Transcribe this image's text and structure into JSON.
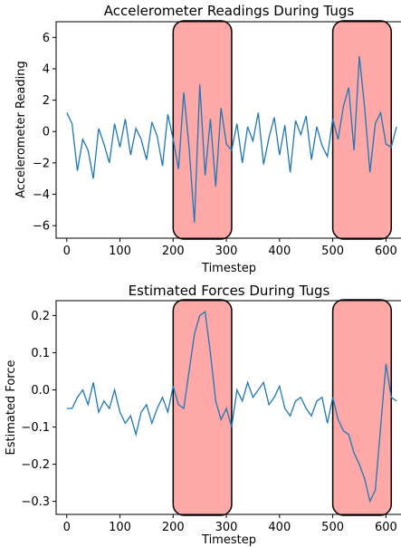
{
  "colors": {
    "line": "#1f77b4",
    "band": "#ff9999",
    "band_edge": "#000000",
    "axis": "#000000"
  },
  "chart_data": [
    {
      "type": "line",
      "title": "Accelerometer Readings During Tugs",
      "xlabel": "Timestep",
      "ylabel": "Accelerometer Reading",
      "xlim": [
        -20,
        630
      ],
      "ylim": [
        -6.8,
        7.0
      ],
      "xticks": [
        0,
        100,
        200,
        300,
        400,
        500,
        600
      ],
      "yticks": [
        -6,
        -4,
        -2,
        0,
        2,
        4,
        6
      ],
      "highlight_ranges": [
        [
          200,
          310
        ],
        [
          500,
          610
        ]
      ],
      "series": [
        {
          "x": [
            0,
            10,
            20,
            30,
            40,
            50,
            60,
            70,
            80,
            90,
            100,
            110,
            120,
            130,
            140,
            150,
            160,
            170,
            180,
            190,
            200,
            210,
            220,
            230,
            240,
            250,
            260,
            270,
            280,
            290,
            300,
            310,
            320,
            330,
            340,
            350,
            360,
            370,
            380,
            390,
            400,
            410,
            420,
            430,
            440,
            450,
            460,
            470,
            480,
            490,
            500,
            510,
            520,
            530,
            540,
            550,
            560,
            570,
            580,
            590,
            600,
            610,
            620
          ],
          "y": [
            1.2,
            0.5,
            -2.5,
            -0.5,
            -1.2,
            -3.0,
            0.2,
            -0.8,
            -2.0,
            0.5,
            -1.0,
            0.8,
            -1.5,
            0.2,
            -0.5,
            -1.8,
            0.6,
            -0.3,
            -2.2,
            1.1,
            -0.5,
            -2.4,
            2.5,
            -1.0,
            -5.8,
            3.0,
            -2.8,
            0.8,
            -3.5,
            1.5,
            -0.8,
            -1.2,
            0.5,
            -2.0,
            0.3,
            -0.6,
            1.2,
            -2.1,
            -0.4,
            0.9,
            -1.5,
            0.4,
            -2.6,
            0.7,
            -0.2,
            1.0,
            -1.8,
            0.3,
            -0.9,
            -1.6,
            0.8,
            -0.5,
            1.6,
            2.8,
            -1.2,
            4.8,
            1.5,
            -2.6,
            0.5,
            1.2,
            -0.8,
            -1.0,
            0.3
          ]
        }
      ]
    },
    {
      "type": "line",
      "title": "Estimated Forces During Tugs",
      "xlabel": "Timestep",
      "ylabel": "Estimated Force",
      "xlim": [
        -20,
        630
      ],
      "ylim": [
        -0.335,
        0.24
      ],
      "xticks": [
        0,
        100,
        200,
        300,
        400,
        500,
        600
      ],
      "yticks": [
        -0.3,
        -0.2,
        -0.1,
        0.0,
        0.1,
        0.2
      ],
      "highlight_ranges": [
        [
          200,
          310
        ],
        [
          500,
          610
        ]
      ],
      "series": [
        {
          "x": [
            0,
            10,
            20,
            30,
            40,
            50,
            60,
            70,
            80,
            90,
            100,
            110,
            120,
            130,
            140,
            150,
            160,
            170,
            180,
            190,
            200,
            210,
            220,
            230,
            240,
            250,
            260,
            270,
            280,
            290,
            300,
            310,
            320,
            330,
            340,
            350,
            360,
            370,
            380,
            390,
            400,
            410,
            420,
            430,
            440,
            450,
            460,
            470,
            480,
            490,
            500,
            510,
            520,
            530,
            540,
            550,
            560,
            570,
            580,
            590,
            600,
            610,
            620
          ],
          "y": [
            -0.05,
            -0.05,
            -0.02,
            0.0,
            -0.04,
            0.02,
            -0.06,
            -0.03,
            -0.05,
            0.0,
            -0.06,
            -0.09,
            -0.07,
            -0.12,
            -0.06,
            -0.04,
            -0.09,
            -0.05,
            -0.02,
            -0.06,
            0.01,
            -0.04,
            -0.05,
            0.05,
            0.15,
            0.2,
            0.21,
            0.1,
            -0.03,
            -0.08,
            -0.05,
            -0.1,
            0.0,
            -0.03,
            0.02,
            -0.02,
            0.0,
            0.02,
            -0.04,
            -0.02,
            0.01,
            -0.05,
            -0.07,
            -0.03,
            -0.02,
            -0.05,
            -0.07,
            -0.03,
            -0.02,
            -0.09,
            -0.02,
            -0.08,
            -0.11,
            -0.12,
            -0.17,
            -0.2,
            -0.24,
            -0.3,
            -0.27,
            -0.1,
            0.07,
            -0.02,
            -0.03
          ]
        }
      ]
    }
  ]
}
